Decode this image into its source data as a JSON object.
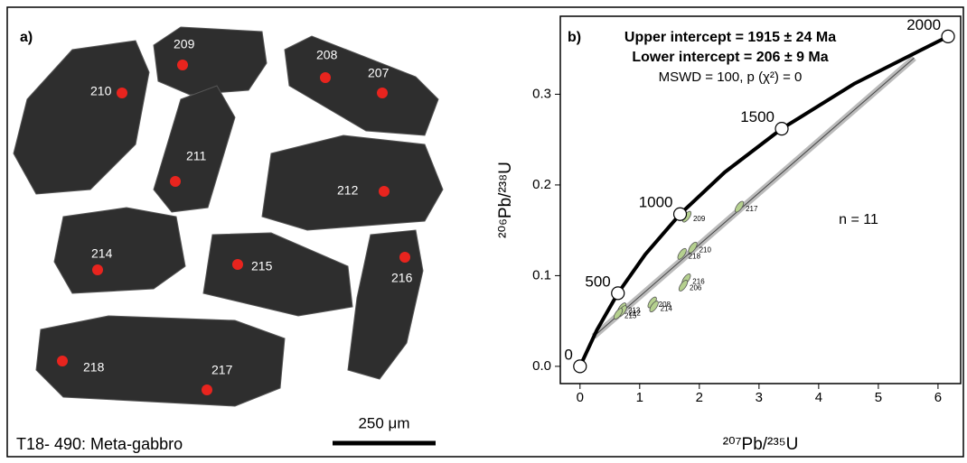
{
  "image_panel": {
    "label": "a)",
    "caption": "T18- 490: Meta-gabbro",
    "scale_bar": "250 μm",
    "spots": [
      "209",
      "210",
      "208",
      "207",
      "211",
      "212",
      "214",
      "215",
      "216",
      "218",
      "217"
    ]
  },
  "chart_data": {
    "type": "concordia",
    "label": "b)",
    "annotations": [
      "Upper intercept = 1915 ± 24 Ma",
      "Lower intercept = 206 ± 9 Ma",
      "MSWD = 100, p (χ²) = 0",
      "n = 11"
    ],
    "x_label": "²⁰⁷Pb/²³⁵U",
    "y_label": "²⁰⁶Pb/²³⁸U",
    "xlim": [
      -0.33,
      6.38
    ],
    "ylim": [
      -0.019,
      0.386
    ],
    "xticks": [
      0,
      1,
      2,
      3,
      4,
      5,
      6
    ],
    "yticks": [
      {
        "value": 0,
        "label": "0.0"
      },
      {
        "value": 0.1,
        "label": "0.1"
      },
      {
        "value": 0.2,
        "label": "0.2"
      },
      {
        "value": 0.3,
        "label": "0.3"
      }
    ],
    "concordia": {
      "x": [
        0,
        0.2792,
        0.6356,
        1.0931,
        1.6774,
        2.4248,
        3.3813,
        4.6043,
        6.1688
      ],
      "y": [
        0,
        0.03954,
        0.08063,
        0.12338,
        0.16782,
        0.21398,
        0.262,
        0.31188,
        0.36375
      ],
      "color": "#000000"
    },
    "age_markers": {
      "labels": [
        "0",
        "500",
        "1000",
        "1500",
        "2000"
      ],
      "x": [
        0,
        0.6356,
        1.6774,
        3.3813,
        6.1688
      ],
      "y": [
        0,
        0.08063,
        0.16782,
        0.262,
        0.36375
      ]
    },
    "discordia": {
      "x": [
        0.23,
        5.6
      ],
      "y": [
        0.033,
        0.34
      ],
      "color": "#bbbbbb"
    },
    "points": {
      "labels": [
        "209",
        "217",
        "218",
        "210",
        "216",
        "206",
        "208",
        "214",
        "213",
        "212",
        "215"
      ],
      "x": [
        1.79,
        2.67,
        1.71,
        1.89,
        1.78,
        1.73,
        1.21,
        1.24,
        0.7,
        0.71,
        0.64
      ],
      "y": [
        0.165,
        0.176,
        0.124,
        0.131,
        0.096,
        0.089,
        0.0705,
        0.066,
        0.064,
        0.061,
        0.058
      ],
      "color": "#b5d08f"
    }
  }
}
